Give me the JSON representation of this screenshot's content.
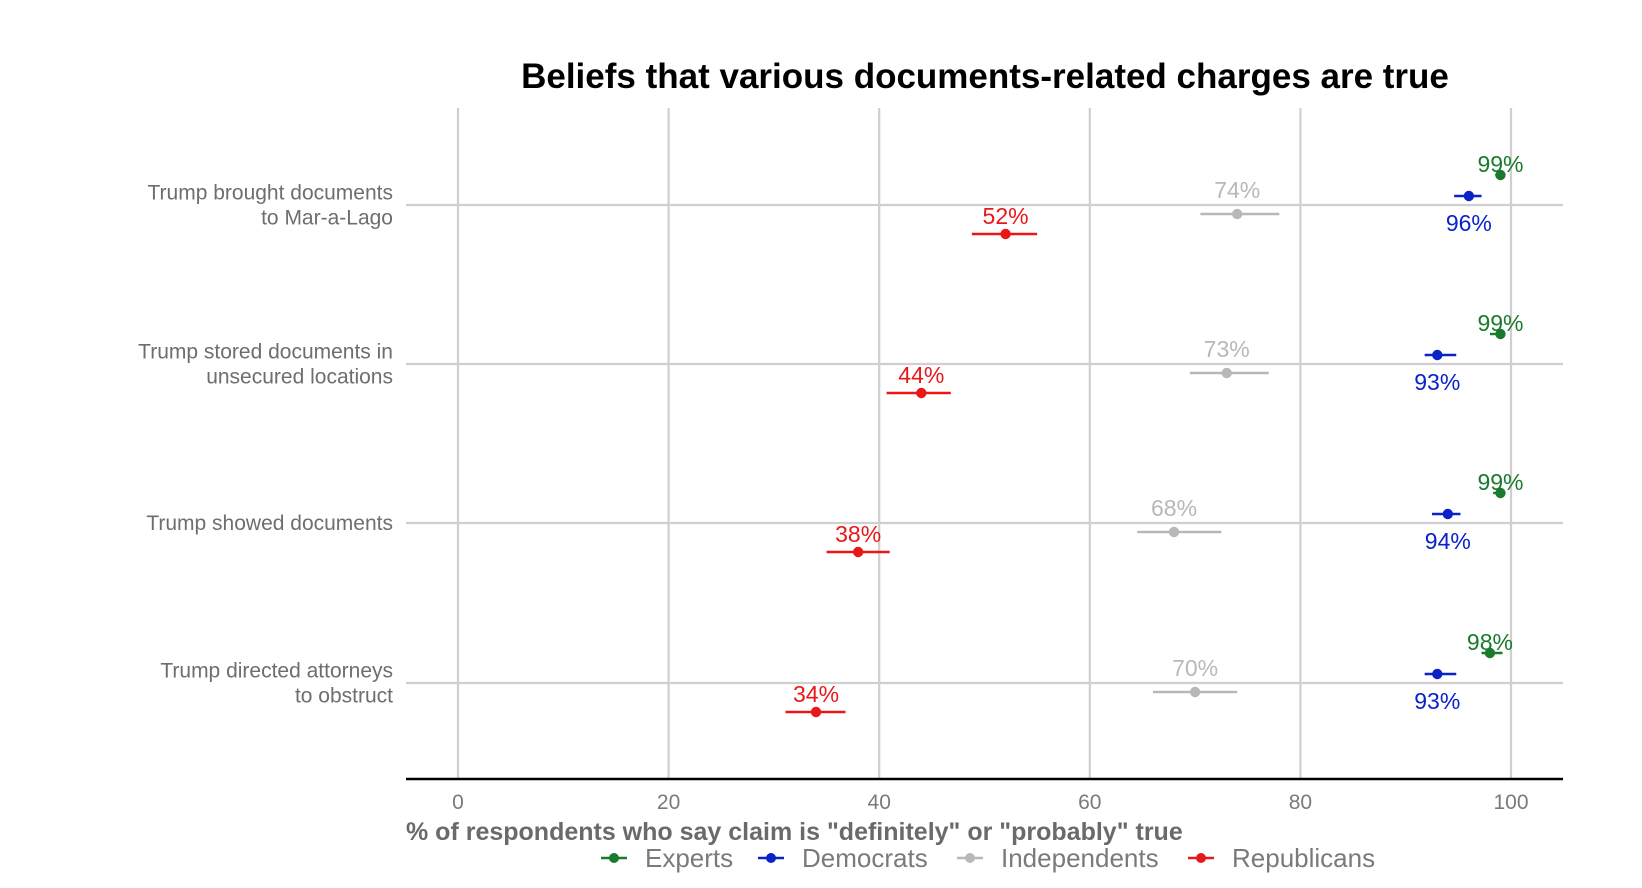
{
  "chart_data": {
    "type": "scatter",
    "title": "Beliefs that various documents-related charges are true",
    "xlabel": "% of respondents who say claim is \"definitely\" or \"probably\" true",
    "ylabel": "",
    "xlim": [
      0,
      100
    ],
    "xticks": [
      "0",
      "20",
      "40",
      "60",
      "80",
      "100"
    ],
    "grid": true,
    "legend_position": "bottom",
    "categories": [
      [
        "Trump brought documents",
        "to Mar-a-Lago"
      ],
      [
        "Trump stored documents in",
        "unsecured locations"
      ],
      [
        "Trump showed documents"
      ],
      [
        "Trump directed attorneys",
        "to obstruct"
      ]
    ],
    "series": [
      {
        "name": "Experts",
        "color": "#1a7a2e",
        "values": [
          99,
          99,
          99,
          98
        ],
        "ci_low": [
          98.5,
          98,
          98.3,
          97.2
        ],
        "ci_high": [
          99.4,
          99.2,
          99.4,
          99.2
        ],
        "labels": [
          "99%",
          "99%",
          "99%",
          "98%"
        ]
      },
      {
        "name": "Democrats",
        "color": "#0a22c8",
        "values": [
          96,
          93,
          94,
          93
        ],
        "ci_low": [
          94.6,
          91.8,
          92.5,
          91.8
        ],
        "ci_high": [
          97.2,
          94.8,
          95.2,
          94.8
        ],
        "labels": [
          "96%",
          "93%",
          "94%",
          "93%"
        ]
      },
      {
        "name": "Independents",
        "color": "#b8b8b8",
        "values": [
          74,
          73,
          68,
          70
        ],
        "ci_low": [
          70.5,
          69.5,
          64.5,
          66
        ],
        "ci_high": [
          78,
          77,
          72.5,
          74
        ],
        "labels": [
          "74%",
          "73%",
          "68%",
          "70%"
        ]
      },
      {
        "name": "Republicans",
        "color": "#e81818",
        "values": [
          52,
          44,
          38,
          34
        ],
        "ci_low": [
          48.8,
          40.7,
          35,
          31.1
        ],
        "ci_high": [
          55,
          46.8,
          41,
          36.8
        ],
        "labels": [
          "52%",
          "44%",
          "38%",
          "34%"
        ]
      }
    ]
  }
}
